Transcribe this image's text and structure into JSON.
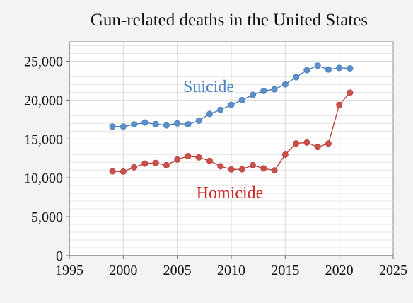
{
  "chart_data": {
    "type": "line",
    "title": "Gun-related deaths in the United States",
    "xlabel": "",
    "ylabel": "",
    "xlim": [
      1995,
      2025
    ],
    "ylim": [
      0,
      27500
    ],
    "x_ticks": [
      1995,
      2000,
      2005,
      2010,
      2015,
      2020,
      2025
    ],
    "y_ticks": [
      0,
      5000,
      10000,
      15000,
      20000,
      25000
    ],
    "y_tick_labels": [
      "0",
      "5,000",
      "10,000",
      "15,000",
      "20,000",
      "25,000"
    ],
    "grid": true,
    "x": [
      1999,
      2000,
      2001,
      2002,
      2003,
      2004,
      2005,
      2006,
      2007,
      2008,
      2009,
      2010,
      2011,
      2012,
      2013,
      2014,
      2015,
      2016,
      2017,
      2018,
      2019,
      2020,
      2021
    ],
    "series": [
      {
        "name": "Suicide",
        "color": "#5b8fca",
        "line_color": "#3f74b3",
        "values": [
          16600,
          16590,
          16870,
          17110,
          16910,
          16750,
          17000,
          16880,
          17350,
          18220,
          18740,
          19390,
          19990,
          20670,
          21180,
          21390,
          22020,
          22940,
          23850,
          24430,
          23940,
          24140,
          24090
        ]
      },
      {
        "name": "Homicide",
        "color": "#c9504a",
        "line_color": "#b53a34",
        "values": [
          10830,
          10800,
          11350,
          11830,
          11920,
          11620,
          12350,
          12790,
          12630,
          12180,
          11490,
          11080,
          11100,
          11620,
          11210,
          10950,
          12980,
          14420,
          14540,
          13960,
          14410,
          19380,
          20960
        ]
      }
    ]
  }
}
